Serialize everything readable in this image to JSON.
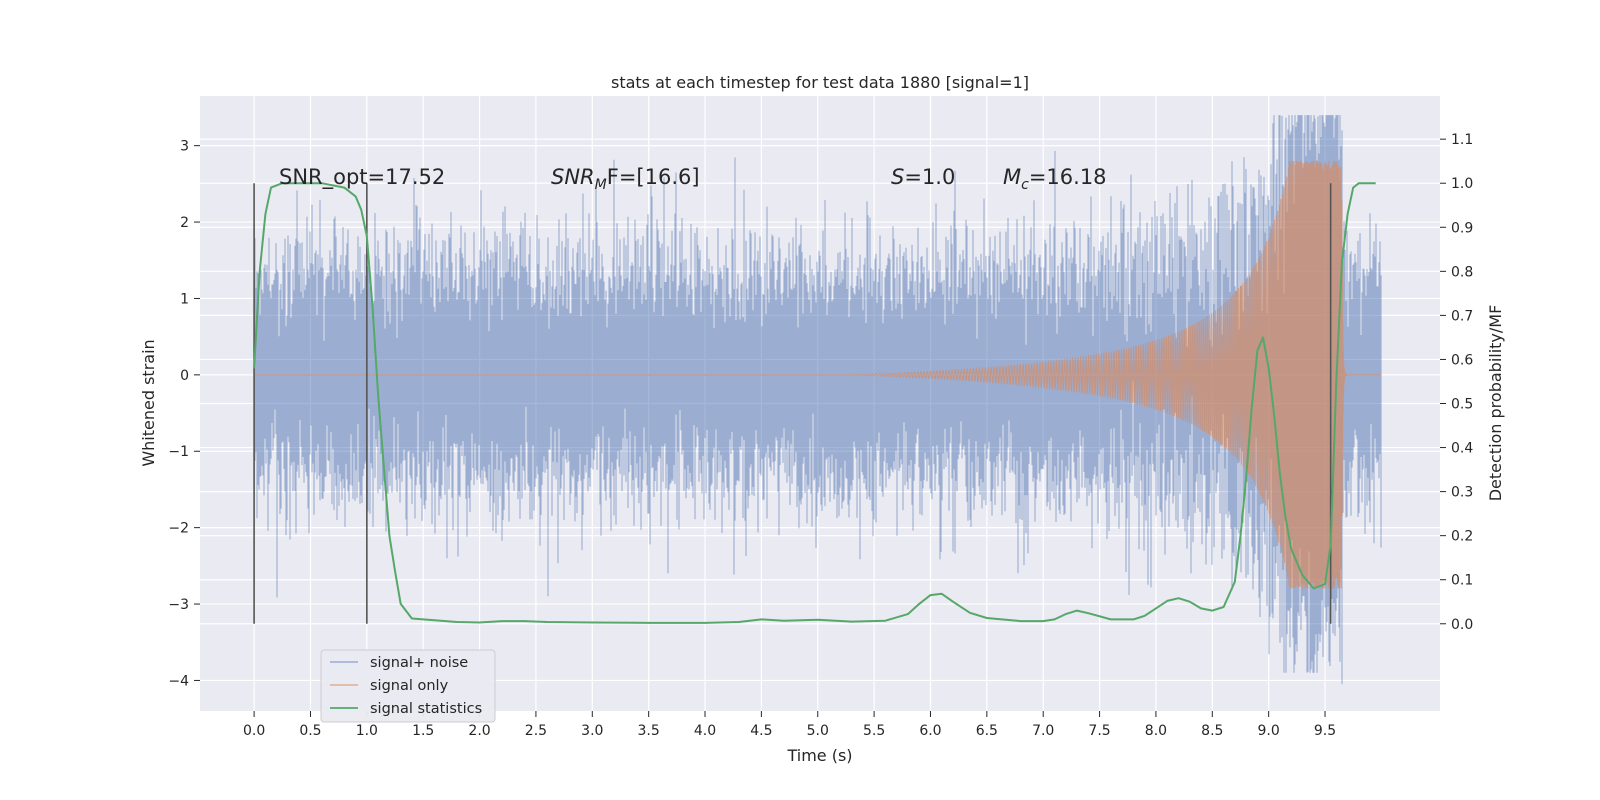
{
  "chart_data": {
    "type": "line",
    "title": "stats at each timestep for test data 1880 [signal=1]",
    "xlabel": "Time (s)",
    "ylabel": "Whitened strain",
    "y2label": "Detection probability/MF",
    "xlim": [
      -0.48,
      10.52
    ],
    "ylim": [
      -4.4,
      3.65
    ],
    "y2lim": [
      -0.198,
      1.198
    ],
    "x_ticks": [
      0.0,
      0.5,
      1.0,
      1.5,
      2.0,
      2.5,
      3.0,
      3.5,
      4.0,
      4.5,
      5.0,
      5.5,
      6.0,
      6.5,
      7.0,
      7.5,
      8.0,
      8.5,
      9.0,
      9.5
    ],
    "x_tick_labels": [
      "0.0",
      "0.5",
      "1.0",
      "1.5",
      "2.0",
      "2.5",
      "3.0",
      "3.5",
      "4.0",
      "4.5",
      "5.0",
      "5.5",
      "6.0",
      "6.5",
      "7.0",
      "7.5",
      "8.0",
      "8.5",
      "9.0",
      "9.5"
    ],
    "y_ticks": [
      3,
      2,
      1,
      0,
      -1,
      -2,
      -3,
      -4
    ],
    "y_tick_labels": [
      "3",
      "2",
      "1",
      "0",
      "−1",
      "−2",
      "−3",
      "−4"
    ],
    "y2_ticks": [
      1.1,
      1.0,
      0.9,
      0.8,
      0.7,
      0.6,
      0.5,
      0.4,
      0.3,
      0.2,
      0.1,
      0.0
    ],
    "y2_tick_labels": [
      "1.1",
      "1.0",
      "0.9",
      "0.8",
      "0.7",
      "0.6",
      "0.5",
      "0.4",
      "0.3",
      "0.2",
      "0.1",
      "0.0"
    ],
    "grid": true,
    "legend_position": "lower-left",
    "annotations": {
      "snr_opt": "SNR_opt=17.52",
      "snr_mf_base": "SNR",
      "snr_mf_sub": "M",
      "snr_mf_rest": "F=[16.6]",
      "s_base": "S",
      "s_rest": "=1.0",
      "mc_base": "M",
      "mc_sub": "c",
      "mc_rest": "=16.18"
    },
    "vertical_lines": [
      0.0,
      1.0,
      9.55
    ],
    "series": [
      {
        "name": "signal+ noise",
        "color": "#4c72b0",
        "axis": "left",
        "duration": 10.0,
        "amplitude_std": 0.75,
        "peak_x": 9.65,
        "peak_max": 3.2,
        "peak_min": -4.05
      },
      {
        "name": "signal only",
        "color": "#dd8452",
        "axis": "left",
        "x_start": 5.3,
        "x_merger": 9.65,
        "x_end": 10.0,
        "peak_amplitude": 2.8
      },
      {
        "name": "signal statistics",
        "color": "#55a868",
        "axis": "right",
        "x": [
          0.0,
          0.05,
          0.1,
          0.15,
          0.25,
          0.4,
          0.6,
          0.8,
          0.9,
          0.95,
          1.0,
          1.05,
          1.1,
          1.15,
          1.2,
          1.25,
          1.3,
          1.4,
          1.6,
          1.8,
          2.0,
          2.2,
          2.4,
          2.6,
          3.0,
          3.5,
          4.0,
          4.3,
          4.5,
          4.7,
          5.0,
          5.3,
          5.6,
          5.8,
          5.9,
          6.0,
          6.1,
          6.2,
          6.35,
          6.5,
          6.8,
          7.0,
          7.1,
          7.2,
          7.3,
          7.4,
          7.6,
          7.8,
          7.9,
          8.0,
          8.1,
          8.2,
          8.3,
          8.4,
          8.5,
          8.6,
          8.7,
          8.75,
          8.8,
          8.85,
          8.9,
          8.95,
          9.0,
          9.05,
          9.1,
          9.15,
          9.2,
          9.3,
          9.4,
          9.5,
          9.55,
          9.6,
          9.65,
          9.7,
          9.75,
          9.8,
          9.9,
          9.95
        ],
        "y": [
          0.58,
          0.8,
          0.93,
          0.99,
          1.0,
          1.0,
          1.0,
          0.99,
          0.97,
          0.94,
          0.88,
          0.72,
          0.52,
          0.36,
          0.2,
          0.12,
          0.045,
          0.012,
          0.008,
          0.004,
          0.003,
          0.006,
          0.006,
          0.004,
          0.003,
          0.002,
          0.002,
          0.004,
          0.01,
          0.007,
          0.009,
          0.005,
          0.007,
          0.022,
          0.045,
          0.065,
          0.068,
          0.05,
          0.025,
          0.013,
          0.006,
          0.006,
          0.01,
          0.022,
          0.03,
          0.024,
          0.01,
          0.01,
          0.018,
          0.035,
          0.052,
          0.058,
          0.05,
          0.035,
          0.03,
          0.038,
          0.095,
          0.2,
          0.33,
          0.49,
          0.62,
          0.65,
          0.58,
          0.47,
          0.34,
          0.24,
          0.17,
          0.11,
          0.08,
          0.09,
          0.18,
          0.55,
          0.82,
          0.93,
          0.99,
          1.0,
          1.0,
          1.0
        ]
      }
    ]
  }
}
